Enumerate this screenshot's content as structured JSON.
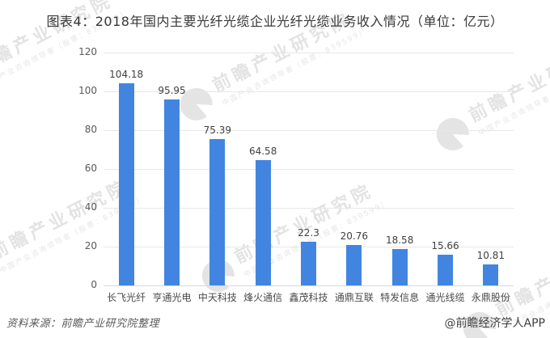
{
  "title": "图表4：2018年国内主要光纤光缆企业光纤光缆业务收入情况（单位：亿元）",
  "footer": {
    "source": "资料来源：前瞻产业研究院整理",
    "attribution": "@前瞻经济学人APP"
  },
  "watermark": {
    "brand": "前瞻产业研究院",
    "tagline": "中国产业咨询领导者（股票：839599）"
  },
  "colors": {
    "bar": "#4285e1",
    "gridline": "#e7e7e7",
    "baseline": "#d8d8d8",
    "title_text": "#383838",
    "axis_text": "#595959",
    "value_text": "#404040",
    "watermark_text": "#e4e4e4"
  },
  "chart_data": {
    "type": "bar",
    "title": "2018年国内主要光纤光缆企业光纤光缆业务收入情况",
    "unit": "亿元",
    "categories": [
      "长飞光纤",
      "亨通光电",
      "中天科技",
      "烽火通信",
      "鑫茂科技",
      "通鼎互联",
      "特发信息",
      "通光线缆",
      "永鼎股份"
    ],
    "values": [
      104.18,
      95.95,
      75.39,
      64.58,
      22.3,
      20.76,
      18.58,
      15.66,
      10.81
    ],
    "value_labels": [
      "104.18",
      "95.95",
      "75.39",
      "64.58",
      "22.3",
      "20.76",
      "18.58",
      "15.66",
      "10.81"
    ],
    "xlabel": "",
    "ylabel": "",
    "ylim": [
      0,
      120
    ],
    "yticks": [
      0,
      20,
      40,
      60,
      80,
      100,
      120
    ],
    "grid": true,
    "legend_position": "none"
  }
}
